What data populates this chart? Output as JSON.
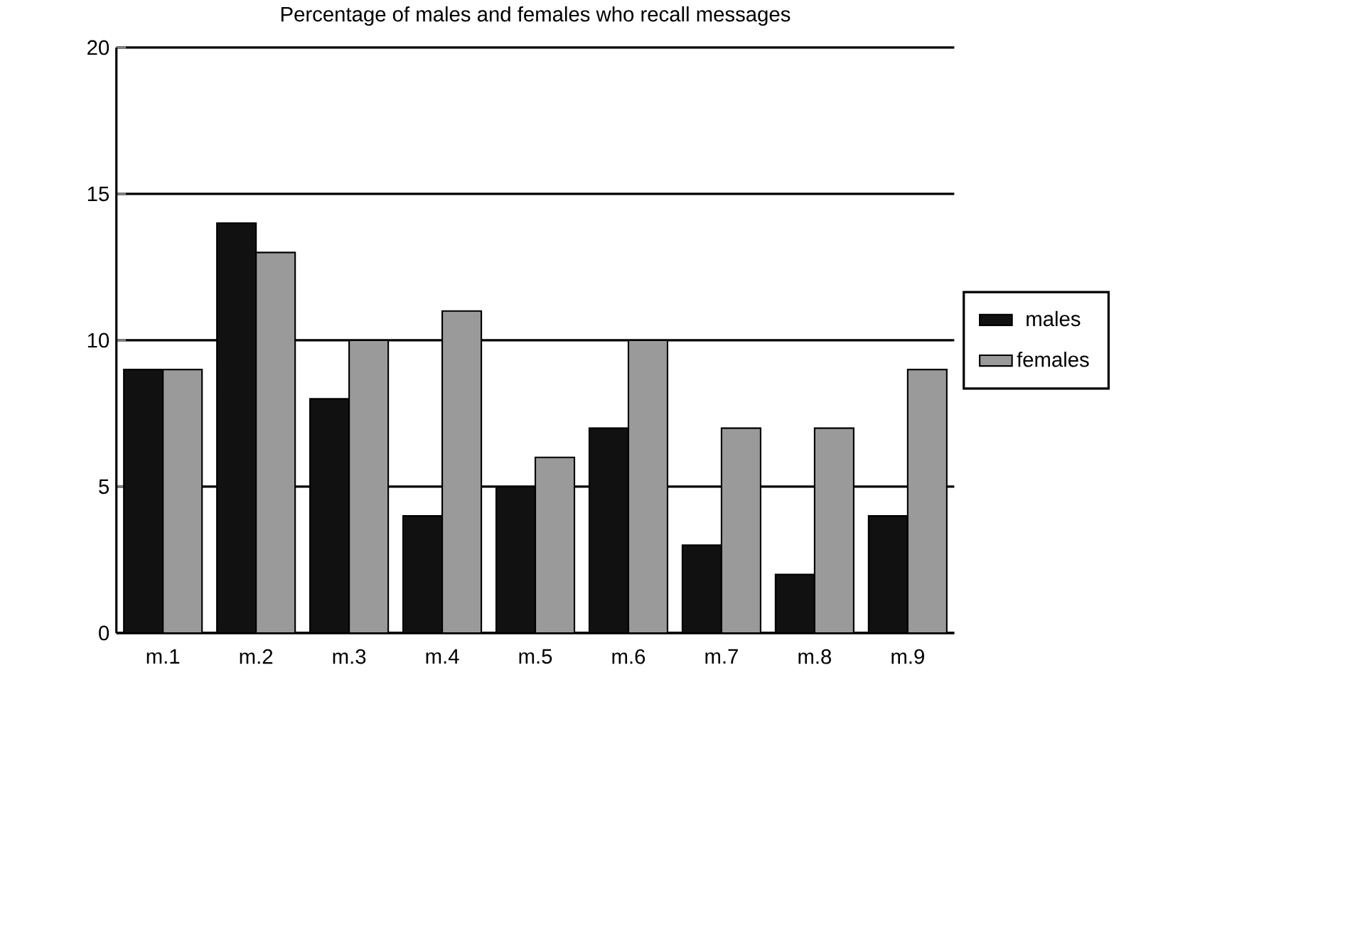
{
  "chart_data": {
    "type": "bar",
    "title": "Percentage of males and females who recall messages",
    "categories": [
      "m.1",
      "m.2",
      "m.3",
      "m.4",
      "m.5",
      "m.6",
      "m.7",
      "m.8",
      "m.9"
    ],
    "series": [
      {
        "name": "males",
        "color": "#111111",
        "values": [
          9,
          14,
          8,
          4,
          5,
          7,
          3,
          2,
          4
        ]
      },
      {
        "name": "females",
        "color": "#9a9a9a",
        "values": [
          9,
          13,
          10,
          11,
          6,
          10,
          7,
          7,
          9
        ]
      }
    ],
    "ylim": [
      0,
      20
    ],
    "yticks": [
      0,
      5,
      10,
      15,
      20
    ],
    "grid": "y",
    "legend": "right"
  }
}
